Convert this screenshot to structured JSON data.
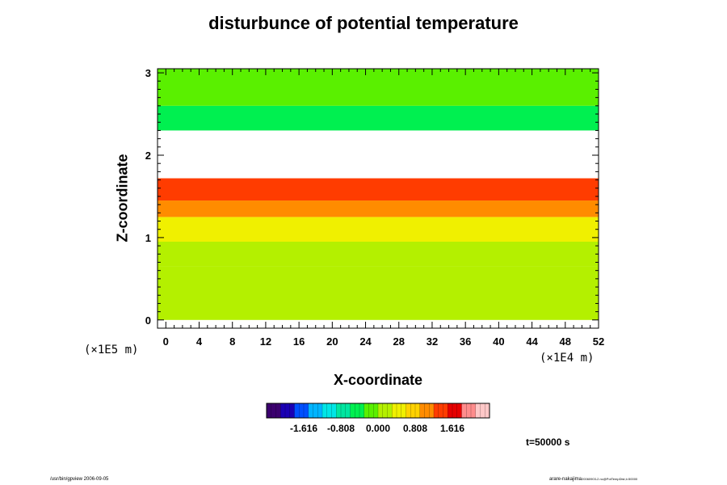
{
  "chart_data": {
    "type": "heatmap",
    "title": "disturbunce of potential temperature",
    "xlabel": "X-coordinate",
    "ylabel": "Z-coordinate",
    "x_unit": "(×1E4 m)",
    "z_unit": "(×1E5 m)",
    "xlim": [
      -1,
      52
    ],
    "ylim": [
      -0.1,
      3.05
    ],
    "x_ticks": [
      0,
      4,
      8,
      12,
      16,
      20,
      24,
      28,
      32,
      36,
      40,
      44,
      48,
      52
    ],
    "x_tick_labels": [
      "0",
      "4",
      "8",
      "12",
      "16",
      "20",
      "24",
      "28",
      "32",
      "36",
      "40",
      "44",
      "48",
      "52"
    ],
    "y_ticks": [
      0,
      1,
      2,
      3
    ],
    "y_tick_labels": [
      "0",
      "1",
      "2",
      "3"
    ],
    "colorbar": {
      "range": [
        -2.424,
        2.424
      ],
      "ticks": [
        -1.616,
        -0.808,
        0.0,
        0.808,
        1.616
      ],
      "tick_labels": [
        "-1.616",
        "-0.808",
        "0.000",
        "0.808",
        "1.616"
      ],
      "colors": [
        "#3b006e",
        "#1a00b4",
        "#0050ff",
        "#00b4ff",
        "#00e6e6",
        "#00e6a0",
        "#00f050",
        "#5af000",
        "#b4f000",
        "#f0f000",
        "#ffd200",
        "#ff8c00",
        "#ff3c00",
        "#e60000",
        "#ff8c8c",
        "#ffc8c8"
      ]
    },
    "bands": [
      {
        "z": [
          0.0,
          0.65
        ],
        "value": 0.2
      },
      {
        "z": [
          0.65,
          0.95
        ],
        "value": 0.3
      },
      {
        "z": [
          0.95,
          1.25
        ],
        "value": 0.6
      },
      {
        "z": [
          1.25,
          1.45
        ],
        "value": 1.1
      },
      {
        "z": [
          1.45,
          1.72
        ],
        "value": 1.5
      },
      {
        "z": [
          1.72,
          2.3
        ],
        "value": 3.0
      },
      {
        "z": [
          2.3,
          2.6
        ],
        "value": -0.6
      },
      {
        "z": [
          2.6,
          3.05
        ],
        "value": -0.3
      }
    ]
  },
  "time_label": "t=50000 s",
  "footer": {
    "left": "/usr/bin/gpview 2006-09-05",
    "right": "arare-nakajima",
    "right_sub": "20060903-2.nc@PotTempDist,t=50000"
  },
  "colors": {
    "frame": "#000000",
    "background": "#ffffff"
  }
}
